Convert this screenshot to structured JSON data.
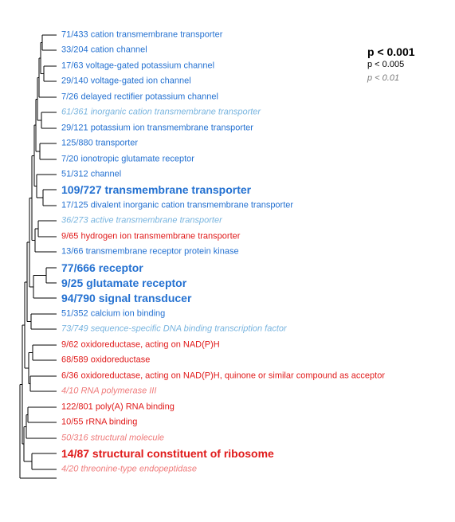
{
  "colors": {
    "strong_blue": "#2471d1",
    "mid_blue": "#2471d1",
    "weak_blue": "#78b4df",
    "strong_red": "#e01a1a",
    "mid_red": "#e01a1a",
    "weak_red": "#ef7b7b",
    "tree_line": "#000000"
  },
  "legend": {
    "strong": "p < 0.001",
    "mid": "p < 0.005",
    "weak": "p < 0.01"
  },
  "terms": [
    {
      "label": "71/433 cation transmembrane transporter",
      "color": "blue",
      "significance": "mid"
    },
    {
      "label": "33/204 cation channel",
      "color": "blue",
      "significance": "mid"
    },
    {
      "label": "17/63 voltage-gated potassium channel",
      "color": "blue",
      "significance": "mid"
    },
    {
      "label": "29/140 voltage-gated ion channel",
      "color": "blue",
      "significance": "mid"
    },
    {
      "label": "7/26 delayed rectifier potassium channel",
      "color": "blue",
      "significance": "mid"
    },
    {
      "label": "61/361 inorganic cation transmembrane transporter",
      "color": "blue",
      "significance": "weak"
    },
    {
      "label": "29/121 potassium ion transmembrane transporter",
      "color": "blue",
      "significance": "mid"
    },
    {
      "label": "125/880 transporter",
      "color": "blue",
      "significance": "mid"
    },
    {
      "label": "7/20 ionotropic glutamate receptor",
      "color": "blue",
      "significance": "mid"
    },
    {
      "label": "51/312 channel",
      "color": "blue",
      "significance": "mid"
    },
    {
      "label": "109/727 transmembrane transporter",
      "color": "blue",
      "significance": "strong"
    },
    {
      "label": "17/125 divalent inorganic cation transmembrane transporter",
      "color": "blue",
      "significance": "mid"
    },
    {
      "label": "36/273 active transmembrane transporter",
      "color": "blue",
      "significance": "weak"
    },
    {
      "label": "9/65 hydrogen ion transmembrane transporter",
      "color": "red",
      "significance": "mid"
    },
    {
      "label": "13/66 transmembrane receptor protein kinase",
      "color": "blue",
      "significance": "mid"
    },
    {
      "label": "77/666 receptor",
      "color": "blue",
      "significance": "strong"
    },
    {
      "label": "9/25 glutamate receptor",
      "color": "blue",
      "significance": "strong"
    },
    {
      "label": "94/790 signal transducer",
      "color": "blue",
      "significance": "strong"
    },
    {
      "label": "51/352 calcium ion binding",
      "color": "blue",
      "significance": "mid"
    },
    {
      "label": "73/749 sequence-specific DNA binding transcription factor",
      "color": "blue",
      "significance": "weak"
    },
    {
      "label": "9/62 oxidoreductase, acting on NAD(P)H",
      "color": "red",
      "significance": "mid"
    },
    {
      "label": "68/589 oxidoreductase",
      "color": "red",
      "significance": "mid"
    },
    {
      "label": "6/36 oxidoreductase, acting on NAD(P)H, quinone or similar compound as acceptor",
      "color": "red",
      "significance": "mid"
    },
    {
      "label": "4/10 RNA polymerase III",
      "color": "red",
      "significance": "weak"
    },
    {
      "label": "122/801 poly(A) RNA binding",
      "color": "red",
      "significance": "mid"
    },
    {
      "label": "10/55 rRNA binding",
      "color": "red",
      "significance": "mid"
    },
    {
      "label": "50/316 structural molecule",
      "color": "red",
      "significance": "weak"
    },
    {
      "label": "14/87 structural constituent of ribosome",
      "color": "red",
      "significance": "strong"
    },
    {
      "label": "4/20 threonine-type endopeptidase",
      "color": "red",
      "significance": "weak"
    }
  ]
}
